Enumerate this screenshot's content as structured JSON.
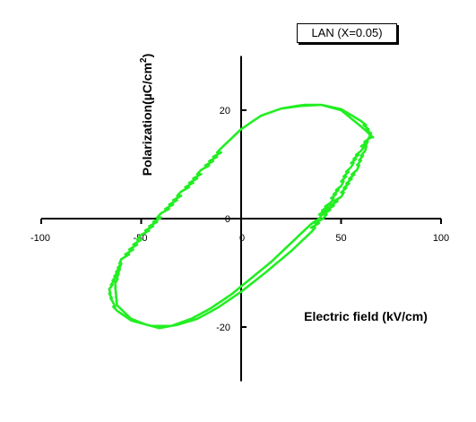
{
  "chart_data": {
    "type": "line",
    "legend": "LAN (X=0.05)",
    "xlabel": "Electric field (kV/cm)",
    "ylabel": "Polarization(µC/cm",
    "ylabel_sup": "2",
    "ylabel_close": ")",
    "xlim": [
      -100,
      100
    ],
    "ylim": [
      -30,
      30
    ],
    "grid": false,
    "legend_position": "top-right",
    "xticks": [
      {
        "value": -100,
        "label": "-100"
      },
      {
        "value": -50,
        "label": "-50"
      },
      {
        "value": 0,
        "label": "0"
      },
      {
        "value": 50,
        "label": "50"
      },
      {
        "value": 100,
        "label": "100"
      }
    ],
    "yticks": [
      {
        "value": -20,
        "label": "-20"
      },
      {
        "value": 0,
        "label": "0"
      },
      {
        "value": 20,
        "label": "20"
      }
    ],
    "series": [
      {
        "color": "#22ee22",
        "x": [
          65,
          60,
          50,
          40,
          30,
          20,
          10,
          0,
          -10,
          -20,
          -30,
          -40,
          -50,
          -60,
          -63,
          -62,
          -55,
          -48,
          -41,
          -32,
          -22,
          -12,
          0,
          12,
          25,
          35,
          41,
          50,
          58,
          62,
          64,
          66,
          60,
          50,
          40,
          32,
          28,
          20,
          10,
          0,
          -10,
          -20,
          -30,
          -40,
          -50,
          -60,
          -66,
          -64,
          -62,
          -55,
          -45,
          -35,
          -25,
          -15,
          -5,
          5,
          15,
          25,
          35,
          39,
          45,
          50,
          55,
          60,
          65
        ],
        "y": [
          15,
          18,
          20.2,
          21,
          20.8,
          20.3,
          19,
          16.5,
          13,
          9,
          5,
          1,
          -3,
          -7.5,
          -12,
          -16,
          -18.5,
          -19.5,
          -20.2,
          -19.6,
          -18.5,
          -16.5,
          -13.5,
          -10,
          -6,
          -2.5,
          0,
          4,
          9,
          12.5,
          15,
          15,
          17,
          20,
          21,
          21,
          20.8,
          20.3,
          19,
          16.5,
          13,
          9,
          5,
          1,
          -3,
          -7.5,
          -13,
          -15.5,
          -17,
          -18.8,
          -19.8,
          -19.8,
          -18.5,
          -16.5,
          -14,
          -11,
          -8,
          -4.5,
          -1,
          0,
          3,
          6,
          9.5,
          12.5,
          15
        ]
      }
    ]
  }
}
